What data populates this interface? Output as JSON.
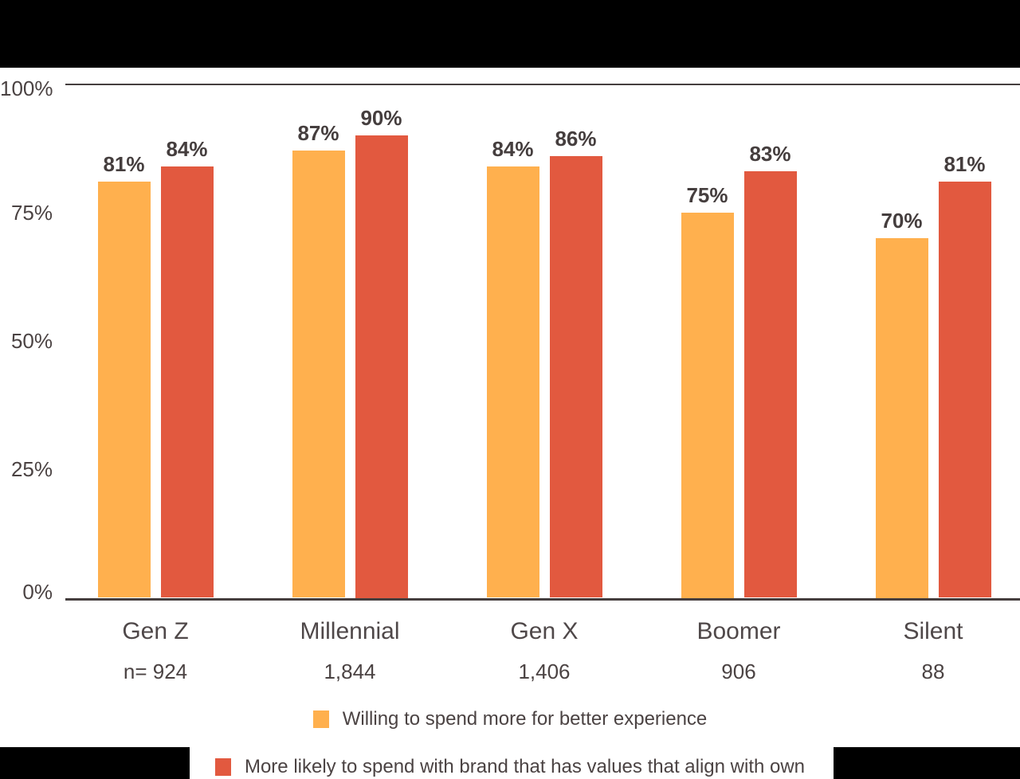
{
  "chart_data": {
    "type": "bar",
    "title": "",
    "categories": [
      "Gen Z",
      "Millennial",
      "Gen X",
      "Boomer",
      "Silent"
    ],
    "sample_sizes": [
      "n= 924",
      "1,844",
      "1,406",
      "906",
      "88"
    ],
    "series": [
      {
        "name": "Willing to spend more for better experience",
        "color": "#ffb04e",
        "values": [
          81,
          87,
          84,
          75,
          70
        ]
      },
      {
        "name": "More likely to spend with brand that has values that align with own",
        "color": "#e2593f",
        "values": [
          84,
          90,
          86,
          83,
          81
        ]
      }
    ],
    "value_suffix": "%",
    "y_ticks": [
      {
        "label": "100%",
        "value": 100
      },
      {
        "label": "75%",
        "value": 75
      },
      {
        "label": "50%",
        "value": 50
      },
      {
        "label": "25%",
        "value": 25
      },
      {
        "label": "0%",
        "value": 0
      }
    ],
    "ylim": [
      0,
      100
    ],
    "gridlines": "horizontal lines at 0% and 100% only",
    "legend_position": "bottom",
    "xlabel": "",
    "ylabel": ""
  },
  "colors": {
    "series1": "#ffb04e",
    "series2": "#e2593f",
    "text": "#4b4343",
    "text_dark": "#453e3e",
    "band": "#000000",
    "background": "#ffffff"
  }
}
